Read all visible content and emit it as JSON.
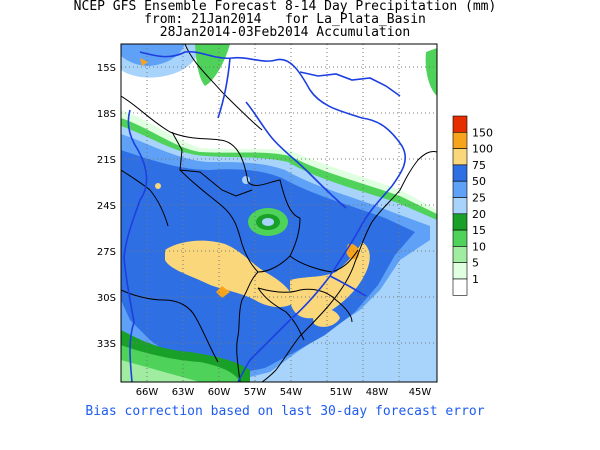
{
  "title": {
    "line1": "NCEP GFS Ensemble Forecast 8-14 Day Precipitation (mm)",
    "line2": "from: 21Jan2014   for La_Plata_Basin",
    "line3": "28Jan2014-03Feb2014 Accumulation"
  },
  "axes": {
    "lat_ticks": [
      "15S",
      "18S",
      "21S",
      "24S",
      "27S",
      "30S",
      "33S"
    ],
    "lon_ticks": [
      "66W",
      "63W",
      "60W",
      "57W",
      "54W",
      "51W",
      "48W",
      "45W"
    ]
  },
  "legend": {
    "levels": [
      {
        "label": "150",
        "color": "#e62d00"
      },
      {
        "label": "100",
        "color": "#f7a41c"
      },
      {
        "label": "75",
        "color": "#fad77b"
      },
      {
        "label": "50",
        "color": "#2f6fe4"
      },
      {
        "label": "25",
        "color": "#5ea1f7"
      },
      {
        "label": "20",
        "color": "#a8d3fa"
      },
      {
        "label": "15",
        "color": "#18a028"
      },
      {
        "label": "10",
        "color": "#4ed25a"
      },
      {
        "label": "5",
        "color": "#a0eca0"
      },
      {
        "label": "1",
        "color": "#e0ffe0"
      }
    ]
  },
  "footnote": "Bias correction based on last 30-day forecast error"
}
